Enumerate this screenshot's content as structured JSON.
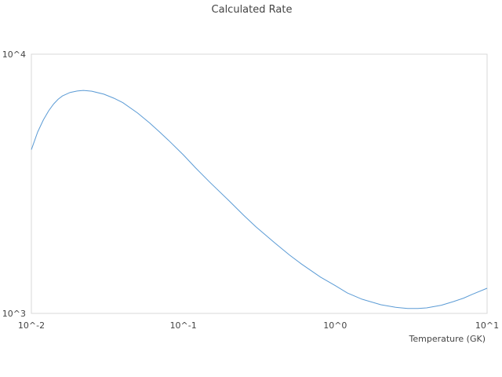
{
  "chart_data": {
    "type": "line",
    "title": "Calculated Rate",
    "xlabel": "Temperature (GK)",
    "ylabel": "",
    "x_scale": "log",
    "y_scale": "log",
    "xlim": [
      0.01,
      10
    ],
    "ylim": [
      1000,
      10000
    ],
    "x_tick_values": [
      0.01,
      0.1,
      1,
      10
    ],
    "x_tick_labels": [
      "10^-2",
      "10^-1",
      "10^0",
      "10^1"
    ],
    "y_tick_values": [
      1000,
      10000
    ],
    "y_tick_labels": [
      "10^3",
      "10^4"
    ],
    "grid": false,
    "legend": "none",
    "series": [
      {
        "color": "#5b9bd5",
        "x": [
          0.01,
          0.011,
          0.012,
          0.013,
          0.014,
          0.015,
          0.016,
          0.018,
          0.02,
          0.022,
          0.025,
          0.03,
          0.035,
          0.04,
          0.05,
          0.06,
          0.07,
          0.08,
          0.1,
          0.12,
          0.15,
          0.2,
          0.25,
          0.3,
          0.4,
          0.5,
          0.6,
          0.8,
          1,
          1.2,
          1.5,
          2,
          2.5,
          3,
          3.5,
          4,
          5,
          6,
          7,
          8,
          10
        ],
        "y": [
          4280,
          5010,
          5580,
          6050,
          6420,
          6700,
          6900,
          7120,
          7210,
          7250,
          7200,
          7010,
          6760,
          6500,
          5930,
          5430,
          5000,
          4650,
          4090,
          3650,
          3200,
          2720,
          2390,
          2160,
          1870,
          1680,
          1550,
          1380,
          1280,
          1200,
          1135,
          1080,
          1055,
          1045,
          1045,
          1050,
          1075,
          1110,
          1145,
          1185,
          1250
        ]
      }
    ]
  }
}
